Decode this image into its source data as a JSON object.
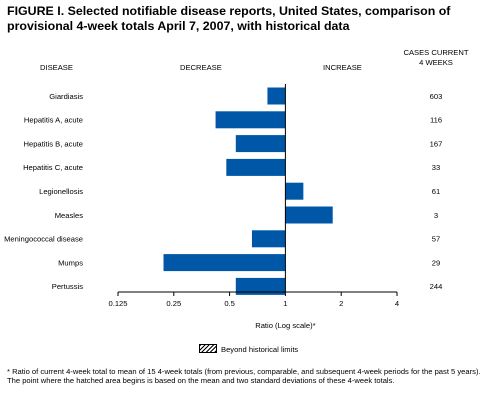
{
  "figure": {
    "title_line1": "FIGURE I. Selected notifiable disease reports, United States, comparison of",
    "title_line2": "provisional 4-week totals April 7, 2007, with historical data"
  },
  "headers": {
    "disease": "DISEASE",
    "decrease": "DECREASE",
    "increase": "INCREASE",
    "cases_line1": "CASES CURRENT",
    "cases_line2": "4 WEEKS"
  },
  "legend": {
    "label": "Beyond historical limits"
  },
  "footnote": {
    "text": "* Ratio of current 4-week total to mean of 15 4-week totals (from previous, comparable, and subsequent 4-week periods for the past 5 years). The point where the hatched area begins is based on the mean and two standard deviations of these 4-week totals."
  },
  "colors": {
    "bar": "#0057a8",
    "axis": "#000000"
  },
  "chart_data": {
    "type": "bar",
    "orientation": "horizontal",
    "x_scale": "log2",
    "xlim": [
      0.125,
      4
    ],
    "reference_line": 1,
    "xlabel": "Ratio (Log scale)*",
    "x_ticks": [
      0.125,
      0.25,
      0.5,
      1,
      2,
      4
    ],
    "x_tick_labels": [
      "0.125",
      "0.25",
      "0.5",
      "1",
      "2",
      "4"
    ],
    "categories": [
      "Giardiasis",
      "Hepatitis A, acute",
      "Hepatitis B, acute",
      "Hepatitis C, acute",
      "Legionellosis",
      "Measles",
      "Meningococcal disease",
      "Mumps",
      "Pertussis"
    ],
    "values": [
      0.8,
      0.42,
      0.54,
      0.48,
      1.25,
      1.8,
      0.66,
      0.22,
      0.54
    ],
    "cases": [
      "603",
      "116",
      "167",
      "33",
      "61",
      "3",
      "57",
      "29",
      "244"
    ]
  }
}
